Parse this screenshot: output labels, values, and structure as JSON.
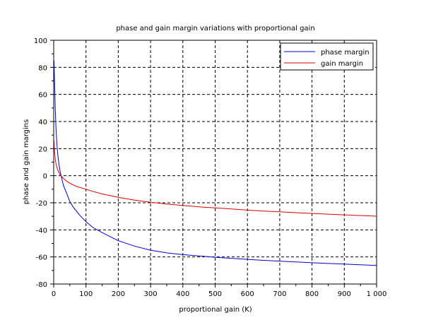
{
  "chart_data": {
    "type": "line",
    "title": "phase and gain margin variations with proportional gain",
    "xlabel": "proportional gain (K)",
    "ylabel": "phase and gain margins",
    "xlim": [
      0,
      1000
    ],
    "ylim": [
      -80,
      100
    ],
    "x_ticks": [
      0,
      100,
      200,
      300,
      400,
      500,
      600,
      700,
      800,
      900,
      1000
    ],
    "x_tick_labels": [
      "0",
      "100",
      "200",
      "300",
      "400",
      "500",
      "600",
      "700",
      "800",
      "900",
      "1 000"
    ],
    "y_ticks": [
      -80,
      -60,
      -40,
      -20,
      0,
      20,
      40,
      60,
      80,
      100
    ],
    "y_tick_labels": [
      "-80",
      "-60",
      "-40",
      "-20",
      "0",
      "20",
      "40",
      "60",
      "80",
      "100"
    ],
    "grid": true,
    "grid_style": "dashed",
    "legend_position": "top-right",
    "series": [
      {
        "name": "phase margin",
        "color": "#0000cc",
        "x": [
          1,
          2,
          3,
          5,
          7,
          10,
          13,
          16,
          20,
          25,
          30,
          40,
          50,
          60,
          70,
          80,
          100,
          120,
          150,
          200,
          250,
          300,
          350,
          400,
          450,
          500,
          550,
          600,
          650,
          700,
          750,
          800,
          850,
          900,
          950,
          1000
        ],
        "y": [
          85,
          75,
          65,
          48,
          36,
          23,
          15,
          9,
          3,
          -2,
          -7,
          -13,
          -19,
          -23,
          -26,
          -29,
          -34,
          -38,
          -42,
          -48,
          -52,
          -55,
          -57,
          -58.3,
          -59.3,
          -60.2,
          -61,
          -61.8,
          -62.5,
          -63.1,
          -63.7,
          -64.3,
          -64.8,
          -65.3,
          -65.8,
          -66.3
        ]
      },
      {
        "name": "gain margin",
        "color": "#dd0000",
        "x": [
          1,
          2,
          3,
          5,
          7,
          10,
          13,
          16,
          20,
          25,
          30,
          40,
          50,
          60,
          70,
          80,
          100,
          120,
          150,
          200,
          250,
          300,
          350,
          400,
          450,
          500,
          550,
          600,
          650,
          700,
          750,
          800,
          850,
          900,
          950,
          1000
        ],
        "y": [
          26,
          20,
          16.5,
          12,
          9,
          6,
          4,
          2.5,
          0.5,
          -0.7,
          -2,
          -4,
          -5.5,
          -6.8,
          -7.8,
          -8.6,
          -10,
          -11.5,
          -13.5,
          -16,
          -18,
          -19.6,
          -20.9,
          -22,
          -23,
          -23.8,
          -24.6,
          -25.4,
          -26.1,
          -26.7,
          -27.3,
          -27.9,
          -28.4,
          -28.9,
          -29.4,
          -29.9
        ]
      }
    ]
  }
}
